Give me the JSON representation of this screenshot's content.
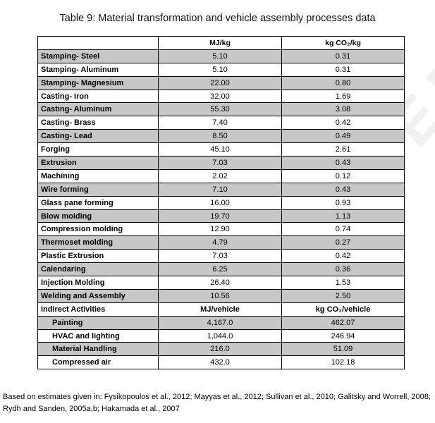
{
  "caption": "Table 9: Material transformation and vehicle assembly processes data",
  "columns": [
    "",
    "MJ/kg",
    "kg CO₂/kg"
  ],
  "rows": [
    {
      "label": "Stamping- Steel",
      "mj": "5.10",
      "co2": "0.31"
    },
    {
      "label": "Stamping- Aluminum",
      "mj": "5.10",
      "co2": "0.31"
    },
    {
      "label": "Stamping- Magnesium",
      "mj": "22.00",
      "co2": "0.80"
    },
    {
      "label": "Casting- Iron",
      "mj": "32.00",
      "co2": "1.69"
    },
    {
      "label": "Casting- Aluminum",
      "mj": "55.30",
      "co2": "3.08"
    },
    {
      "label": "Casting- Brass",
      "mj": "7.40",
      "co2": "0.42"
    },
    {
      "label": "Casting- Lead",
      "mj": "8.50",
      "co2": "0.49"
    },
    {
      "label": "Forging",
      "mj": "45.10",
      "co2": "2.61"
    },
    {
      "label": "Extrusion",
      "mj": "7.03",
      "co2": "0.43"
    },
    {
      "label": "Machining",
      "mj": "2.02",
      "co2": "0.12"
    },
    {
      "label": "Wire forming",
      "mj": "7.10",
      "co2": "0.43"
    },
    {
      "label": "Glass pane forming",
      "mj": "16.00",
      "co2": "0.93"
    },
    {
      "label": "Blow molding",
      "mj": "19.70",
      "co2": "1.13"
    },
    {
      "label": "Compression molding",
      "mj": "12.90",
      "co2": "0.74"
    },
    {
      "label": "Thermoset molding",
      "mj": "4.79",
      "co2": "0.27"
    },
    {
      "label": "Plastic Extrusion",
      "mj": "7.03",
      "co2": "0.42"
    },
    {
      "label": "Calendaring",
      "mj": "6.25",
      "co2": "0.36"
    },
    {
      "label": "Injection Molding",
      "mj": "26.40",
      "co2": "1.53"
    },
    {
      "label": "Welding and Assembly",
      "mj": "10.56",
      "co2": "2.50"
    }
  ],
  "indirect": {
    "label": "Indirect Activities",
    "mj_header": "MJ/vehicle",
    "co2_header": "kg CO₂/vehicle",
    "rows": [
      {
        "label": "Painting",
        "mj": "4,167.0",
        "co2": "462.07"
      },
      {
        "label": "HVAC and lighting",
        "mj": "1,044.0",
        "co2": "246.94"
      },
      {
        "label": "Material Handling",
        "mj": "216.0",
        "co2": "51.09"
      },
      {
        "label": "Compressed air",
        "mj": "432.0",
        "co2": "102.18"
      }
    ]
  },
  "note": "Based on estimates given in: Fysikopoulos et al., 2012; Mayyas et al., 2012; Sullivan et al., 2010; Galitsky and Worrell, 2008; Rydh and Sanden, 2005a,b; Hakamada et al., 2007",
  "watermark": "ACCEPTED MANUSCRIPT"
}
